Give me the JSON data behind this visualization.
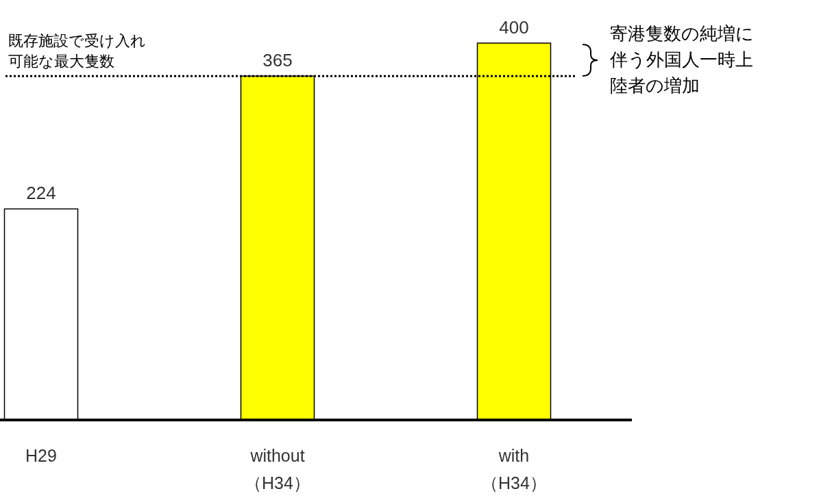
{
  "chart_data": {
    "type": "bar",
    "categories": [
      "H29",
      "without\n（H34）",
      "with\n（H34）"
    ],
    "values": [
      224,
      365,
      400
    ],
    "colors": [
      "#ffffff",
      "#ffff00",
      "#ffff00"
    ],
    "data_labels": true,
    "ref_lines": [
      {
        "axis": "y",
        "value": 365,
        "label": "既存施設で受け入れ可能な最大隻数",
        "line_style": "dotted",
        "color": "#000000"
      }
    ],
    "annotations": [
      "寄港隻数の純増に伴う外国人一時上陸者の増加"
    ]
  }
}
